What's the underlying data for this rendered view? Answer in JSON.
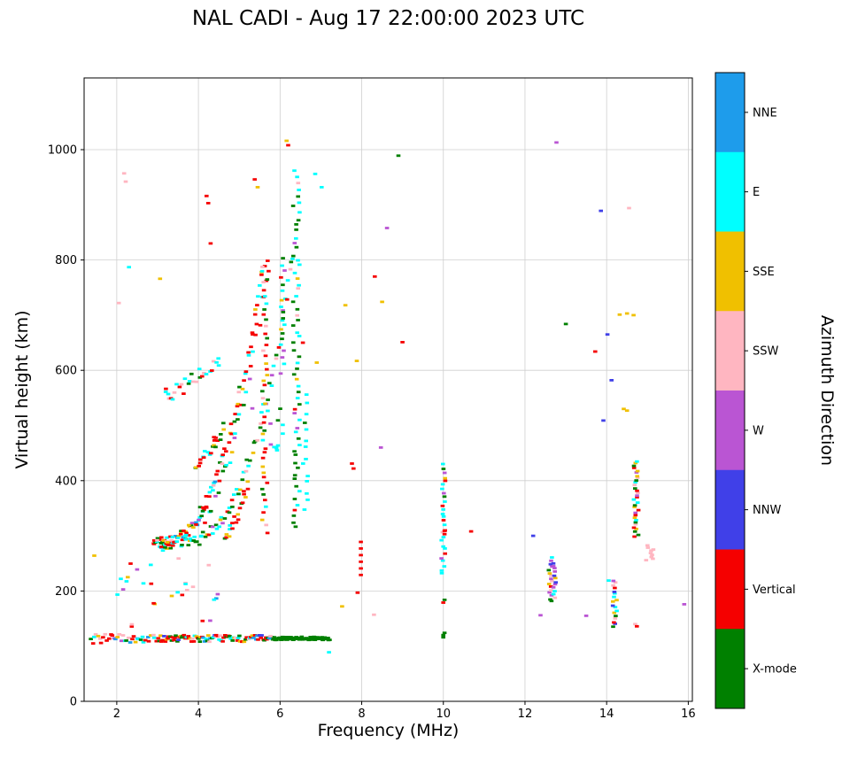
{
  "chart_data": {
    "type": "scatter",
    "title": "NAL CADI - Aug 17 22:00:00 2023 UTC",
    "xlabel": "Frequency (MHz)",
    "ylabel": "Virtual height (km)",
    "xlim": [
      1.2,
      16.1
    ],
    "ylim": [
      0,
      1130
    ],
    "xticks": [
      2,
      4,
      6,
      8,
      10,
      12,
      14,
      16
    ],
    "yticks": [
      0,
      200,
      400,
      600,
      800,
      1000
    ],
    "grid": true,
    "grid_color": "#cfcfcf",
    "colorbar": {
      "label": "Azimuth Direction",
      "categories": [
        {
          "key": "n",
          "label": "NNE",
          "color": "#1e9ceb"
        },
        {
          "key": "e",
          "label": "E",
          "color": "#00ffff"
        },
        {
          "key": "s",
          "label": "SSE",
          "color": "#f0c000"
        },
        {
          "key": "p",
          "label": "SSW",
          "color": "#ffb6c1"
        },
        {
          "key": "w",
          "label": "W",
          "color": "#ba55d3"
        },
        {
          "key": "b",
          "label": "NNW",
          "color": "#4040e8"
        },
        {
          "key": "v",
          "label": "Vertical",
          "color": "#f50000"
        },
        {
          "key": "x",
          "label": "X-mode",
          "color": "#008000"
        }
      ]
    },
    "clusters": [
      {
        "type": "hband",
        "x0": 5.75,
        "x1": 7.22,
        "y": 114,
        "spread": 3,
        "n": 85,
        "colors": {
          "x": 1
        }
      },
      {
        "type": "hband",
        "x0": 1.35,
        "x1": 3.0,
        "y": 113,
        "spread": 9,
        "n": 38,
        "colors": {
          "v": 0.32,
          "e": 0.2,
          "p": 0.16,
          "s": 0.1,
          "n": 0.09,
          "x": 0.06,
          "w": 0.07
        }
      },
      {
        "type": "hband",
        "x0": 3.0,
        "x1": 5.78,
        "y": 114,
        "spread": 6,
        "n": 95,
        "colors": {
          "v": 0.4,
          "x": 0.16,
          "e": 0.12,
          "s": 0.12,
          "p": 0.09,
          "n": 0.06,
          "b": 0.05
        }
      },
      {
        "type": "box",
        "x0": 1.9,
        "x1": 4.6,
        "y0": 135,
        "y1": 262,
        "n": 26,
        "colors": {
          "e": 0.3,
          "v": 0.2,
          "p": 0.15,
          "s": 0.1,
          "n": 0.1,
          "w": 0.08,
          "b": 0.07
        }
      },
      {
        "type": "hband",
        "x0": 2.88,
        "x1": 3.38,
        "y": 290,
        "spread": 7,
        "n": 16,
        "colors": {
          "x": 0.35,
          "v": 0.3,
          "e": 0.35
        }
      },
      {
        "type": "curve",
        "x0": 2.92,
        "x1": 5.62,
        "y0": 287,
        "dy": 520,
        "exp": 2.6,
        "jit": 12,
        "n": 80,
        "colors": {
          "v": 0.45,
          "e": 0.15,
          "s": 0.12,
          "x": 0.12,
          "p": 0.08,
          "n": 0.08
        }
      },
      {
        "type": "curve",
        "x0": 3.05,
        "x1": 5.75,
        "y0": 287,
        "dy": 520,
        "exp": 2.6,
        "jit": 16,
        "n": 50,
        "colors": {
          "e": 0.3,
          "v": 0.25,
          "s": 0.15,
          "x": 0.2,
          "w": 0.1
        }
      },
      {
        "type": "curve",
        "x0": 3.55,
        "x1": 6.35,
        "y0": 290,
        "dy": 530,
        "exp": 2.6,
        "jit": 12,
        "n": 70,
        "colors": {
          "x": 0.38,
          "e": 0.3,
          "s": 0.1,
          "v": 0.1,
          "w": 0.06,
          "p": 0.06
        }
      },
      {
        "type": "curve",
        "x0": 3.2,
        "x1": 4.55,
        "y0": 552,
        "dy": 70,
        "exp": 1.2,
        "jit": 14,
        "n": 26,
        "colors": {
          "e": 0.3,
          "v": 0.25,
          "s": 0.15,
          "x": 0.15,
          "p": 0.15
        }
      },
      {
        "type": "curve",
        "x0": 3.9,
        "x1": 4.65,
        "y0": 425,
        "dy": 75,
        "exp": 1.3,
        "jit": 10,
        "n": 20,
        "colors": {
          "v": 0.5,
          "e": 0.2,
          "s": 0.15,
          "x": 0.15
        }
      },
      {
        "type": "curve",
        "x0": 4.62,
        "x1": 5.25,
        "y0": 300,
        "dy": 95,
        "exp": 1.4,
        "jit": 10,
        "n": 20,
        "colors": {
          "v": 0.6,
          "e": 0.15,
          "s": 0.1,
          "x": 0.15
        }
      },
      {
        "type": "column",
        "x": 5.63,
        "spread": 0.07,
        "y0": 302,
        "y1": 806,
        "n": 46,
        "colors": {
          "v": 0.5,
          "s": 0.15,
          "e": 0.14,
          "x": 0.11,
          "p": 0.1
        }
      },
      {
        "type": "column",
        "x": 6.07,
        "spread": 0.06,
        "y0": 590,
        "y1": 808,
        "n": 18,
        "colors": {
          "e": 0.28,
          "s": 0.2,
          "x": 0.22,
          "v": 0.15,
          "w": 0.15
        }
      },
      {
        "type": "column",
        "x": 6.4,
        "spread": 0.08,
        "y0": 310,
        "y1": 955,
        "n": 60,
        "colors": {
          "x": 0.46,
          "e": 0.34,
          "s": 0.08,
          "w": 0.05,
          "p": 0.04,
          "v": 0.03
        }
      },
      {
        "type": "column",
        "x": 6.62,
        "spread": 0.06,
        "y0": 340,
        "y1": 560,
        "n": 14,
        "colors": {
          "e": 0.6,
          "x": 0.2,
          "p": 0.1,
          "w": 0.1
        }
      },
      {
        "type": "box",
        "x0": 5.75,
        "x1": 6.12,
        "y0": 440,
        "y1": 540,
        "n": 10,
        "colors": {
          "e": 0.5,
          "x": 0.3,
          "w": 0.2
        }
      },
      {
        "type": "column",
        "x": 10.0,
        "spread": 0.05,
        "y0": 228,
        "y1": 432,
        "n": 28,
        "colors": {
          "e": 0.3,
          "x": 0.2,
          "v": 0.15,
          "s": 0.1,
          "p": 0.1,
          "w": 0.1,
          "n": 0.05
        }
      },
      {
        "type": "column",
        "x": 12.62,
        "spread": 0.05,
        "y0": 178,
        "y1": 262,
        "n": 16,
        "colors": {
          "w": 0.35,
          "b": 0.2,
          "p": 0.12,
          "s": 0.12,
          "e": 0.1,
          "v": 0.06,
          "x": 0.05
        }
      },
      {
        "type": "column",
        "x": 12.73,
        "spread": 0.04,
        "y0": 186,
        "y1": 254,
        "n": 12,
        "colors": {
          "w": 0.3,
          "b": 0.25,
          "p": 0.15,
          "s": 0.1,
          "e": 0.1,
          "v": 0.1
        }
      },
      {
        "type": "column",
        "x": 14.2,
        "spread": 0.05,
        "y0": 132,
        "y1": 222,
        "n": 18,
        "colors": {
          "v": 0.3,
          "x": 0.2,
          "s": 0.15,
          "e": 0.1,
          "p": 0.1,
          "w": 0.08,
          "b": 0.07
        }
      },
      {
        "type": "column",
        "x": 14.72,
        "spread": 0.06,
        "y0": 296,
        "y1": 438,
        "n": 32,
        "colors": {
          "s": 0.2,
          "v": 0.18,
          "x": 0.18,
          "e": 0.12,
          "w": 0.12,
          "p": 0.1,
          "b": 0.1
        }
      },
      {
        "type": "column",
        "x": 15.05,
        "spread": 0.1,
        "y0": 254,
        "y1": 284,
        "n": 9,
        "colors": {
          "p": 0.85,
          "e": 0.15
        }
      }
    ],
    "points": [
      [
        2.18,
        957,
        "p"
      ],
      [
        2.22,
        942,
        "p"
      ],
      [
        2.3,
        787,
        "e"
      ],
      [
        2.05,
        722,
        "p"
      ],
      [
        3.06,
        766,
        "s"
      ],
      [
        4.2,
        916,
        "v"
      ],
      [
        4.24,
        903,
        "v"
      ],
      [
        4.3,
        830,
        "v"
      ],
      [
        5.38,
        946,
        "v"
      ],
      [
        5.45,
        932,
        "s"
      ],
      [
        6.16,
        1016,
        "s"
      ],
      [
        6.2,
        1008,
        "v"
      ],
      [
        6.35,
        962,
        "e"
      ],
      [
        6.86,
        956,
        "e"
      ],
      [
        7.02,
        932,
        "e"
      ],
      [
        8.9,
        989,
        "x"
      ],
      [
        12.77,
        1013,
        "w"
      ],
      [
        13.86,
        889,
        "b"
      ],
      [
        14.55,
        894,
        "p"
      ],
      [
        8.62,
        858,
        "w"
      ],
      [
        8.32,
        770,
        "v"
      ],
      [
        8.5,
        724,
        "s"
      ],
      [
        7.6,
        718,
        "s"
      ],
      [
        9.0,
        651,
        "v"
      ],
      [
        13.0,
        684,
        "x"
      ],
      [
        14.32,
        701,
        "s"
      ],
      [
        14.5,
        703,
        "s"
      ],
      [
        14.66,
        700,
        "s"
      ],
      [
        14.02,
        665,
        "b"
      ],
      [
        13.72,
        634,
        "v"
      ],
      [
        14.12,
        582,
        "b"
      ],
      [
        14.42,
        530,
        "s"
      ],
      [
        14.5,
        527,
        "s"
      ],
      [
        13.92,
        509,
        "b"
      ],
      [
        7.88,
        617,
        "s"
      ],
      [
        6.9,
        614,
        "s"
      ],
      [
        6.56,
        650,
        "v"
      ],
      [
        8.47,
        460,
        "w"
      ],
      [
        7.76,
        431,
        "v"
      ],
      [
        7.8,
        422,
        "v"
      ],
      [
        7.98,
        289,
        "v"
      ],
      [
        7.98,
        277,
        "v"
      ],
      [
        7.98,
        265,
        "v"
      ],
      [
        7.98,
        253,
        "v"
      ],
      [
        7.98,
        241,
        "v"
      ],
      [
        7.98,
        229,
        "v"
      ],
      [
        7.9,
        197,
        "v"
      ],
      [
        8.3,
        157,
        "p"
      ],
      [
        7.52,
        172,
        "s"
      ],
      [
        12.2,
        300,
        "b"
      ],
      [
        10.68,
        308,
        "v"
      ],
      [
        10.03,
        303,
        "v"
      ],
      [
        10.03,
        309,
        "v"
      ],
      [
        12.38,
        156,
        "w"
      ],
      [
        13.5,
        155,
        "w"
      ],
      [
        15.9,
        176,
        "w"
      ],
      [
        14.05,
        219,
        "e"
      ],
      [
        7.2,
        89,
        "e"
      ],
      [
        1.45,
        264,
        "s"
      ],
      [
        2.5,
        239,
        "w"
      ],
      [
        2.1,
        222,
        "e"
      ],
      [
        4.38,
        464,
        "s"
      ],
      [
        4.42,
        461,
        "x"
      ],
      [
        3.2,
        561,
        "e"
      ],
      [
        3.26,
        557,
        "e"
      ],
      [
        10.0,
        120,
        "x"
      ],
      [
        10.0,
        116,
        "x"
      ],
      [
        10.03,
        124,
        "x"
      ],
      [
        10.0,
        179,
        "v"
      ],
      [
        10.03,
        184,
        "x"
      ],
      [
        14.7,
        140,
        "p"
      ],
      [
        14.74,
        136,
        "v"
      ],
      [
        5.32,
        531,
        "w"
      ]
    ]
  }
}
